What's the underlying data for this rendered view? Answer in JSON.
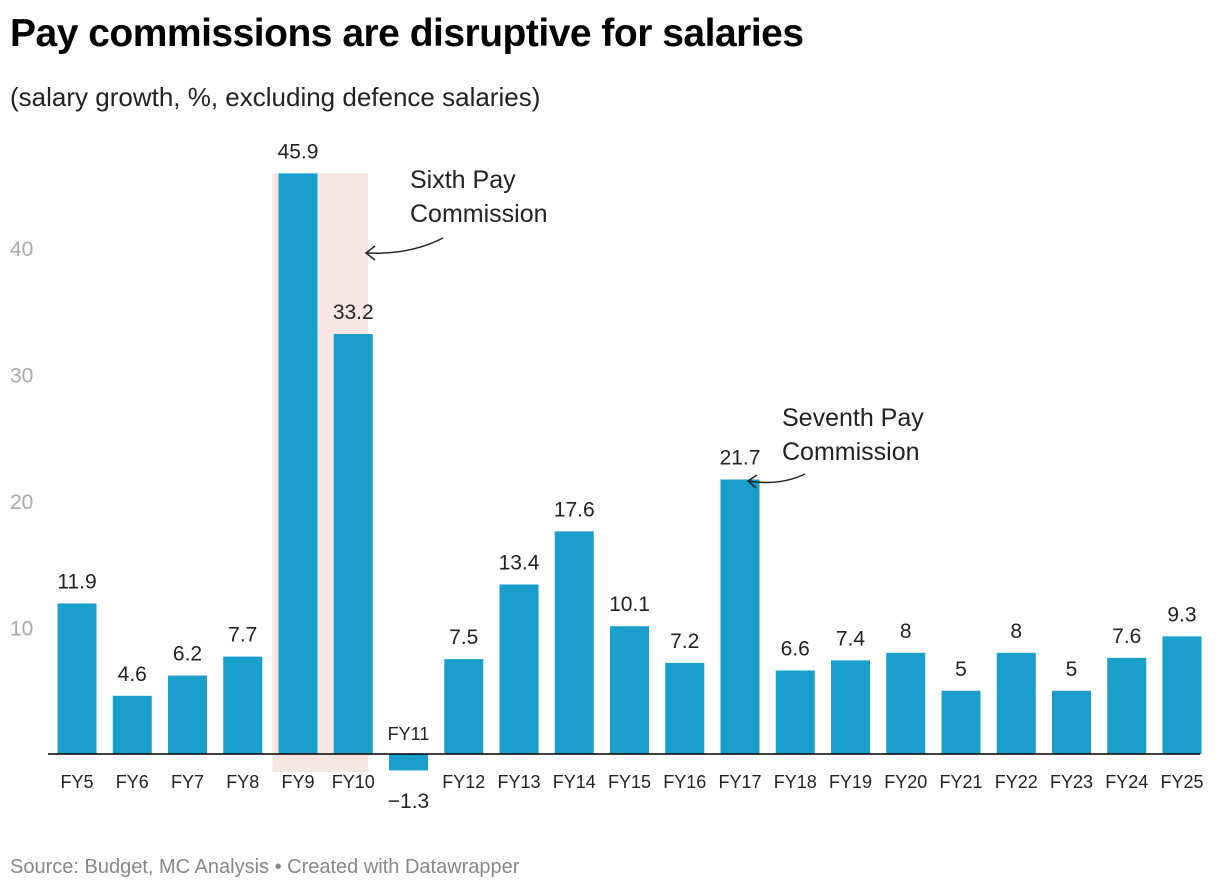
{
  "chart_data": {
    "type": "bar",
    "title": "Pay commissions are disruptive for salaries",
    "subtitle": "(salary growth, %, excluding defence salaries)",
    "xlabel": "",
    "ylabel": "",
    "ylim": [
      -1.3,
      45.9
    ],
    "yticks": [
      10,
      20,
      30,
      40
    ],
    "categories": [
      "FY5",
      "FY6",
      "FY7",
      "FY8",
      "FY9",
      "FY10",
      "FY11",
      "FY12",
      "FY13",
      "FY14",
      "FY15",
      "FY16",
      "FY17",
      "FY18",
      "FY19",
      "FY20",
      "FY21",
      "FY22",
      "FY23",
      "FY24",
      "FY25"
    ],
    "values": [
      11.9,
      4.6,
      6.2,
      7.7,
      45.9,
      33.2,
      -1.3,
      7.5,
      13.4,
      17.6,
      10.1,
      7.2,
      21.7,
      6.6,
      7.4,
      8,
      5,
      8,
      5,
      7.6,
      9.3
    ],
    "value_labels": [
      "11.9",
      "4.6",
      "6.2",
      "7.7",
      "45.9",
      "33.2",
      "−1.3",
      "7.5",
      "13.4",
      "17.6",
      "10.1",
      "7.2",
      "21.7",
      "6.6",
      "7.4",
      "8",
      "5",
      "8",
      "5",
      "7.6",
      "9.3"
    ],
    "highlight_range": [
      "FY9",
      "FY10"
    ],
    "annotations": [
      {
        "lines": [
          "Sixth Pay",
          "Commission"
        ],
        "target": "FY9-FY10"
      },
      {
        "lines": [
          "Seventh Pay",
          "Commission"
        ],
        "target": "FY17"
      }
    ],
    "colors": {
      "bar": "#1a9fcd",
      "highlight": "#f7e6e4"
    },
    "footer": "Source: Budget, MC Analysis • Created with Datawrapper"
  }
}
